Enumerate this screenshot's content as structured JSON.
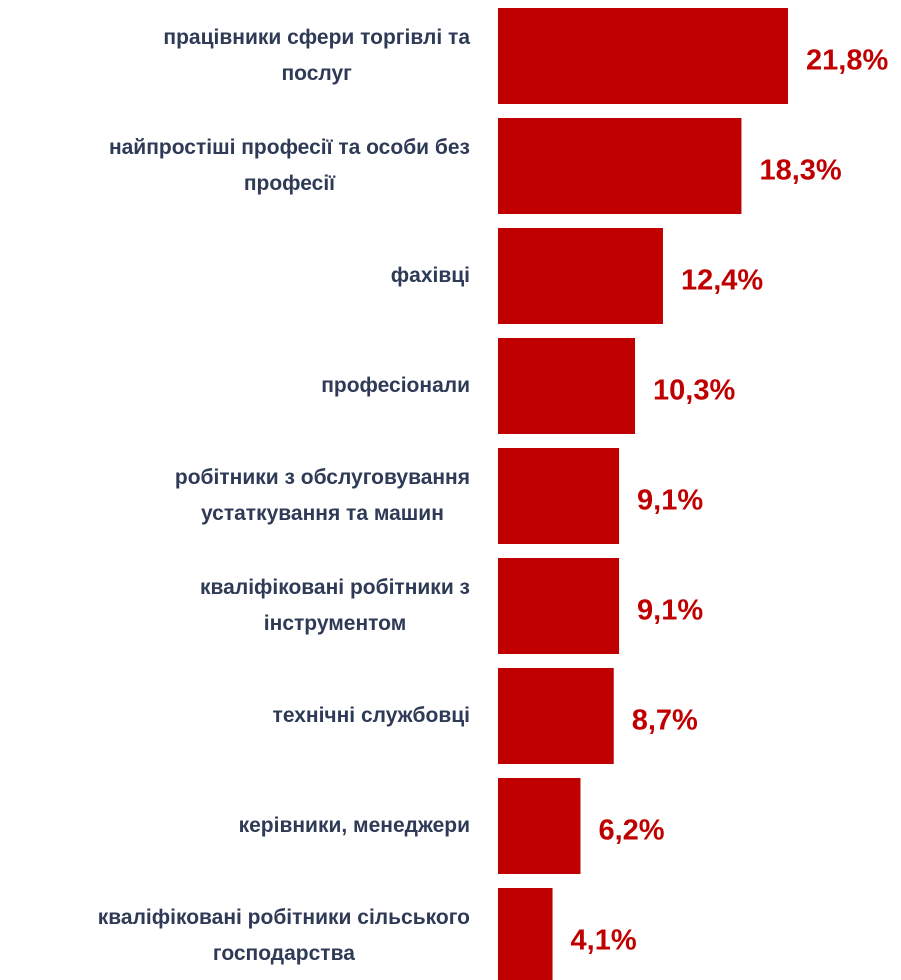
{
  "chart_data": {
    "type": "hbar",
    "categories": [
      "працівники сфери торгівлі та\nпослуг",
      "найпростіші професії та особи без\nпрофесії",
      "фахівці",
      "професіонали",
      "робітники з обслуговування\nустаткування та машин",
      "кваліфіковані робітники з\nінструментом",
      "технічні службовці",
      "керівники, менеджери",
      "кваліфіковані робітники сільського\nгосподарства"
    ],
    "values": [
      21.8,
      18.3,
      12.4,
      10.3,
      9.1,
      9.1,
      8.7,
      6.2,
      4.1
    ],
    "value_labels": [
      "21,8%",
      "18,3%",
      "12,4%",
      "10,3%",
      "9,1%",
      "9,1%",
      "8,7%",
      "6,2%",
      "4,1%"
    ],
    "color": "#c00000"
  }
}
